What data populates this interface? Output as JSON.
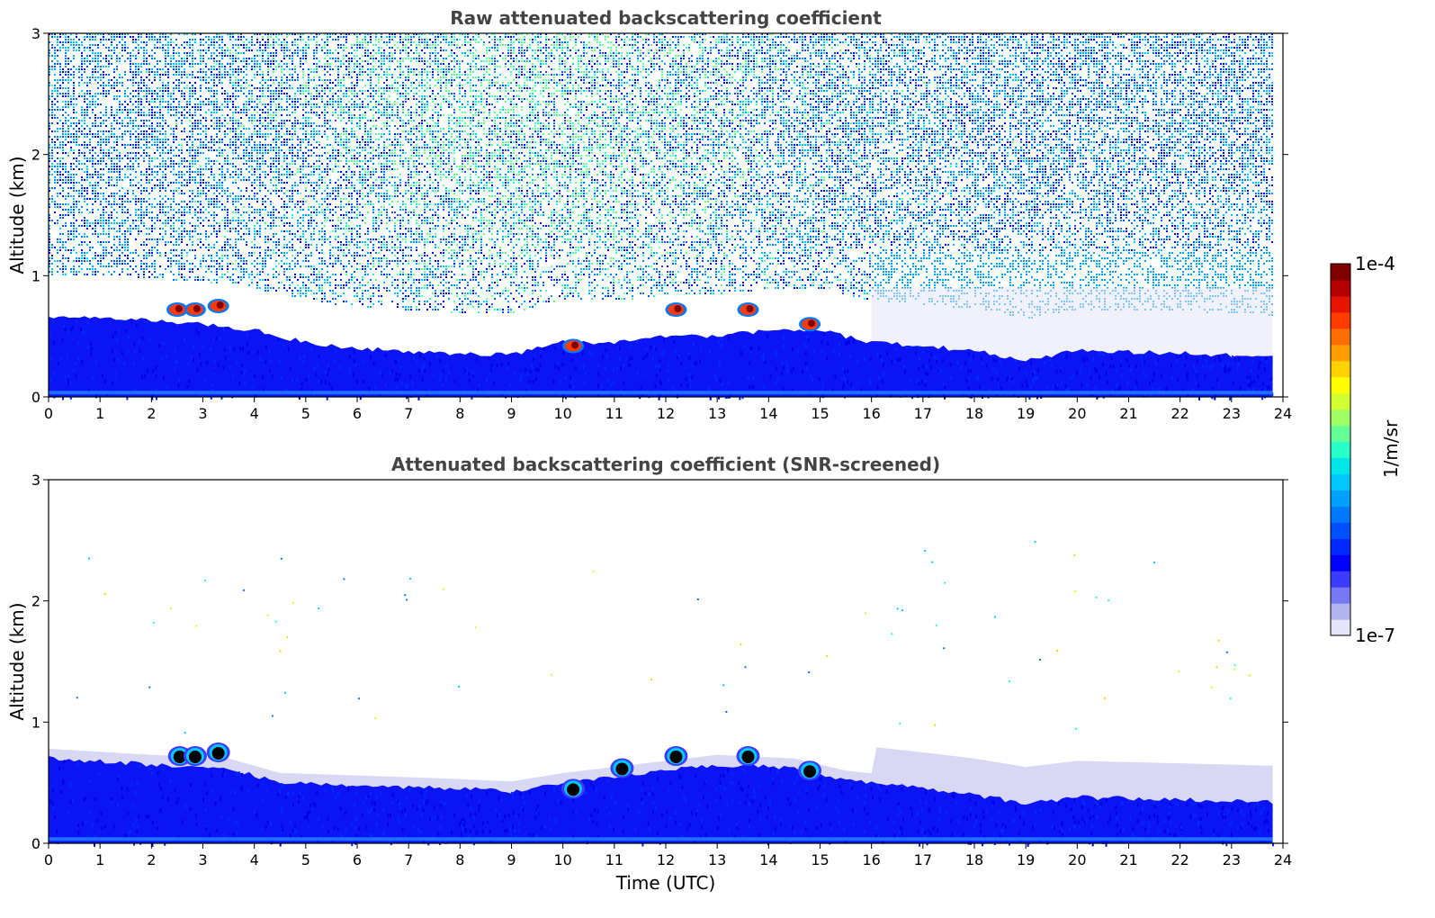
{
  "chart_data": [
    {
      "type": "heatmap",
      "title": "Raw attenuated backscattering coefficient",
      "xlabel": "",
      "ylabel": "Altitude (km)",
      "xlim": [
        0,
        24
      ],
      "ylim": [
        0,
        3
      ],
      "x_ticks": [
        "0",
        "1",
        "2",
        "3",
        "4",
        "5",
        "6",
        "7",
        "8",
        "9",
        "10",
        "11",
        "12",
        "13",
        "14",
        "15",
        "16",
        "17",
        "18",
        "19",
        "20",
        "21",
        "22",
        "23",
        "24"
      ],
      "y_ticks": [
        "0",
        "1",
        "2",
        "3"
      ],
      "scale": "log",
      "boundary_layer_top_km": [
        {
          "t": 0,
          "h": 0.65
        },
        {
          "t": 1.5,
          "h": 0.65
        },
        {
          "t": 3,
          "h": 0.6
        },
        {
          "t": 4,
          "h": 0.55
        },
        {
          "t": 5,
          "h": 0.45
        },
        {
          "t": 6,
          "h": 0.4
        },
        {
          "t": 8,
          "h": 0.35
        },
        {
          "t": 9,
          "h": 0.35
        },
        {
          "t": 10,
          "h": 0.45
        },
        {
          "t": 11,
          "h": 0.45
        },
        {
          "t": 12,
          "h": 0.5
        },
        {
          "t": 13,
          "h": 0.5
        },
        {
          "t": 14,
          "h": 0.55
        },
        {
          "t": 15,
          "h": 0.55
        },
        {
          "t": 16,
          "h": 0.45
        },
        {
          "t": 17,
          "h": 0.42
        },
        {
          "t": 18,
          "h": 0.38
        },
        {
          "t": 19,
          "h": 0.3
        },
        {
          "t": 20,
          "h": 0.38
        },
        {
          "t": 22,
          "h": 0.36
        },
        {
          "t": 23.8,
          "h": 0.33
        }
      ],
      "cloud_features": [
        {
          "t": 2.5,
          "h": 0.72
        },
        {
          "t": 2.85,
          "h": 0.72
        },
        {
          "t": 3.3,
          "h": 0.75
        },
        {
          "t": 10.2,
          "h": 0.42
        },
        {
          "t": 12.2,
          "h": 0.72
        },
        {
          "t": 13.6,
          "h": 0.72
        },
        {
          "t": 14.8,
          "h": 0.6
        }
      ]
    },
    {
      "type": "heatmap",
      "title": "Attenuated backscattering coefficient (SNR-screened)",
      "xlabel": "Time (UTC)",
      "ylabel": "Altitude (km)",
      "xlim": [
        0,
        24
      ],
      "ylim": [
        0,
        3
      ],
      "x_ticks": [
        "0",
        "1",
        "2",
        "3",
        "4",
        "5",
        "6",
        "7",
        "8",
        "9",
        "10",
        "11",
        "12",
        "13",
        "14",
        "15",
        "16",
        "17",
        "18",
        "19",
        "20",
        "21",
        "22",
        "23",
        "24"
      ],
      "y_ticks": [
        "0",
        "1",
        "2",
        "3"
      ],
      "scale": "log",
      "boundary_layer_top_km": [
        {
          "t": 0,
          "h": 0.7
        },
        {
          "t": 2,
          "h": 0.65
        },
        {
          "t": 3.5,
          "h": 0.62
        },
        {
          "t": 4.5,
          "h": 0.5
        },
        {
          "t": 6,
          "h": 0.48
        },
        {
          "t": 8,
          "h": 0.45
        },
        {
          "t": 9,
          "h": 0.43
        },
        {
          "t": 10,
          "h": 0.5
        },
        {
          "t": 11,
          "h": 0.55
        },
        {
          "t": 12,
          "h": 0.6
        },
        {
          "t": 13,
          "h": 0.65
        },
        {
          "t": 14.5,
          "h": 0.62
        },
        {
          "t": 15.5,
          "h": 0.52
        },
        {
          "t": 17,
          "h": 0.45
        },
        {
          "t": 18,
          "h": 0.4
        },
        {
          "t": 19,
          "h": 0.33
        },
        {
          "t": 20,
          "h": 0.38
        },
        {
          "t": 22,
          "h": 0.36
        },
        {
          "t": 23.8,
          "h": 0.34
        }
      ],
      "cloud_features": [
        {
          "t": 2.55,
          "h": 0.72
        },
        {
          "t": 2.85,
          "h": 0.72
        },
        {
          "t": 3.3,
          "h": 0.75
        },
        {
          "t": 10.2,
          "h": 0.45
        },
        {
          "t": 11.15,
          "h": 0.62
        },
        {
          "t": 12.2,
          "h": 0.72
        },
        {
          "t": 13.6,
          "h": 0.72
        },
        {
          "t": 14.8,
          "h": 0.6
        }
      ]
    }
  ],
  "colorbar": {
    "label": "1/m/sr",
    "max_label": "1e-4",
    "min_label": "1e-7",
    "colors": [
      "#e6e6fa",
      "#b4b4f0",
      "#7878f5",
      "#3c3cff",
      "#0000ff",
      "#0028ff",
      "#0050ff",
      "#0078ff",
      "#00a0ff",
      "#00c8ff",
      "#00e6e6",
      "#28ffc8",
      "#64ff96",
      "#a0ff64",
      "#d2ff32",
      "#ffff00",
      "#ffd200",
      "#ffa000",
      "#ff6e00",
      "#ff3c00",
      "#e61400",
      "#b40000",
      "#800000"
    ]
  },
  "palette": {
    "background": "#ffffff",
    "blue": "#0000ff",
    "light_lavender": "#e6e6fa",
    "title_gray": "#444444"
  }
}
